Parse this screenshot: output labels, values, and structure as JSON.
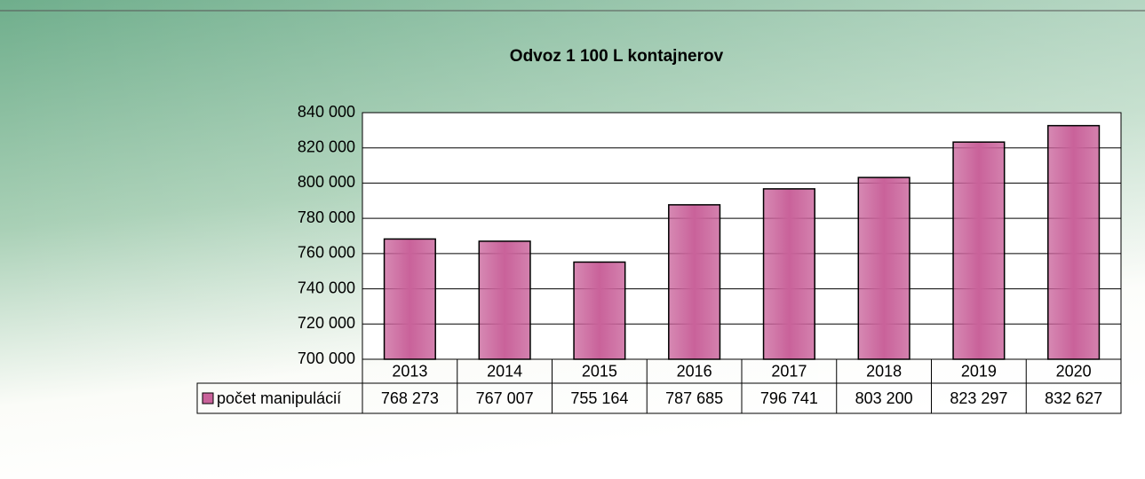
{
  "chart_data": {
    "type": "bar",
    "title": "Odvoz 1 100 L kontajnerov",
    "categories": [
      "2013",
      "2014",
      "2015",
      "2016",
      "2017",
      "2018",
      "2019",
      "2020"
    ],
    "series": [
      {
        "name": "počet manipulácií",
        "color": "#c9629a",
        "values": [
          768273,
          767007,
          755164,
          787685,
          796741,
          803200,
          823297,
          832627
        ],
        "value_labels": [
          "768 273",
          "767 007",
          "755 164",
          "787 685",
          "796 741",
          "803 200",
          "823 297",
          "832 627"
        ]
      }
    ],
    "ylim": [
      700000,
      840000
    ],
    "yticks": [
      {
        "value": 700000,
        "label": "700 000"
      },
      {
        "value": 720000,
        "label": "720 000"
      },
      {
        "value": 740000,
        "label": "740 000"
      },
      {
        "value": 760000,
        "label": "760 000"
      },
      {
        "value": 780000,
        "label": "780 000"
      },
      {
        "value": 800000,
        "label": "800 000"
      },
      {
        "value": 820000,
        "label": "820 000"
      },
      {
        "value": 840000,
        "label": "840 000"
      }
    ],
    "grid": true
  }
}
